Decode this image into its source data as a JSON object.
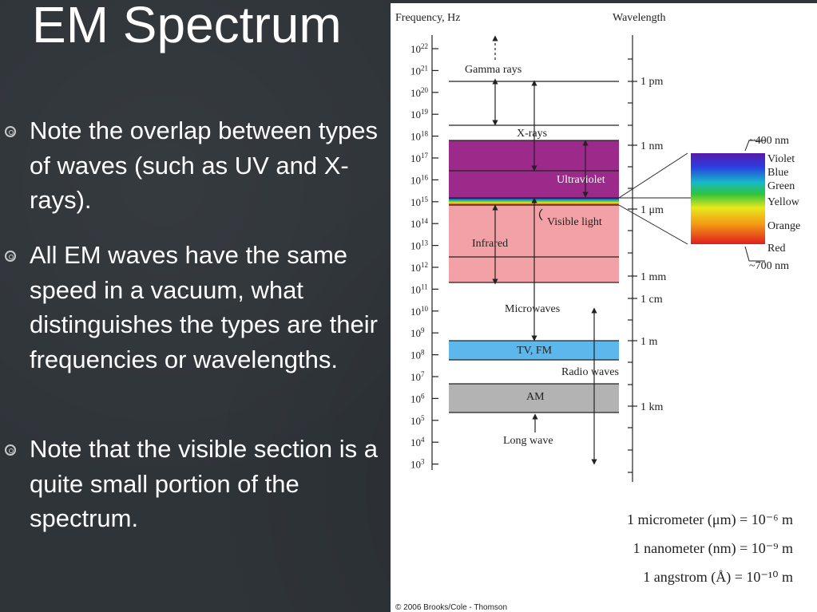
{
  "title": "EM Spectrum",
  "bullets": [
    "Note the overlap between types of waves (such as UV and X-rays).",
    "All EM waves have the same speed in a vacuum, what distinguishes the types are their frequencies or wavelengths.",
    "Note that the visible section is a quite small portion of the spectrum."
  ],
  "figure": {
    "freq_header": "Frequency, Hz",
    "wave_header": "Wavelength",
    "freq_ticks": [
      {
        "base": "10",
        "exp": "22"
      },
      {
        "base": "10",
        "exp": "21"
      },
      {
        "base": "10",
        "exp": "20"
      },
      {
        "base": "10",
        "exp": "19"
      },
      {
        "base": "10",
        "exp": "18"
      },
      {
        "base": "10",
        "exp": "17"
      },
      {
        "base": "10",
        "exp": "16"
      },
      {
        "base": "10",
        "exp": "15"
      },
      {
        "base": "10",
        "exp": "14"
      },
      {
        "base": "10",
        "exp": "13"
      },
      {
        "base": "10",
        "exp": "12"
      },
      {
        "base": "10",
        "exp": "11"
      },
      {
        "base": "10",
        "exp": "10"
      },
      {
        "base": "10",
        "exp": "9"
      },
      {
        "base": "10",
        "exp": "8"
      },
      {
        "base": "10",
        "exp": "7"
      },
      {
        "base": "10",
        "exp": "6"
      },
      {
        "base": "10",
        "exp": "5"
      },
      {
        "base": "10",
        "exp": "4"
      },
      {
        "base": "10",
        "exp": "3"
      }
    ],
    "wave_labels": [
      "1 pm",
      "1 nm",
      "1 μm",
      "1 mm",
      "1 cm",
      "1 m",
      "1 km"
    ],
    "bands": {
      "gamma": "Gamma rays",
      "xray": "X-rays",
      "uv": "Ultraviolet",
      "visible": "Visible light",
      "ir": "Infrared",
      "microwave": "Microwaves",
      "tvfm": "TV, FM",
      "radio": "Radio waves",
      "am": "AM",
      "longwave": "Long wave"
    },
    "visible_labels": {
      "top_nm": "~400 nm",
      "bottom_nm": "~700 nm",
      "colors": [
        "Violet",
        "Blue",
        "Green",
        "Yellow",
        "Orange",
        "Red"
      ]
    },
    "unit_notes": [
      "1 micrometer (μm) = 10⁻⁶ m",
      "1 nanometer (nm) = 10⁻⁹ m",
      "1 angstrom (Å) = 10⁻¹⁰ m"
    ],
    "credit": "© 2006 Brooks/Cole - Thomson",
    "colors": {
      "uv": "#9b2a8a",
      "ir": "#f2a2a6",
      "tvfm": "#5cb8ec",
      "am": "#b3b3b3"
    }
  }
}
